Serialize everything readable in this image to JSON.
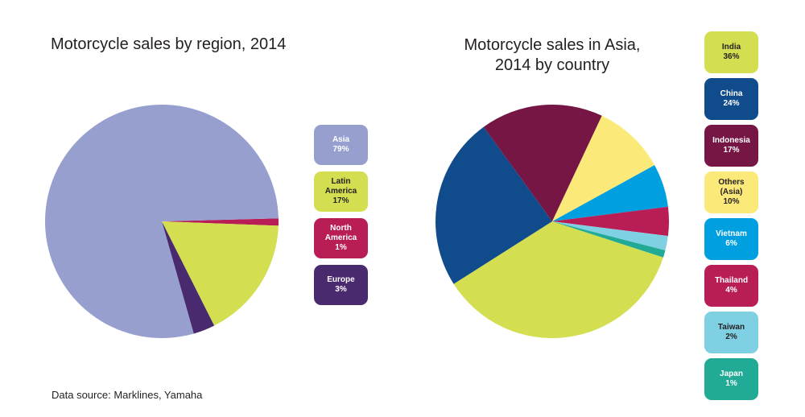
{
  "source": "Data source: Marklines, Yamaha",
  "chart_data": [
    {
      "type": "pie",
      "title": "Motorcycle sales by region, 2014",
      "unit": "%",
      "slices": [
        {
          "label": "Asia",
          "value": 79,
          "color": "#979fcf",
          "text_color": "#ffffff"
        },
        {
          "label": "Latin America",
          "value": 17,
          "color": "#d3df50",
          "text_color": "#231f20"
        },
        {
          "label": "North America",
          "value": 1,
          "color": "#b81d55",
          "text_color": "#ffffff"
        },
        {
          "label": "Europe",
          "value": 3,
          "color": "#4a2a6e",
          "text_color": "#ffffff"
        }
      ],
      "legend": "right"
    },
    {
      "type": "pie",
      "title": "Motorcycle sales in Asia, 2014 by country",
      "unit": "%",
      "slices": [
        {
          "label": "India",
          "value": 36,
          "color": "#d3df50",
          "text_color": "#231f20"
        },
        {
          "label": "China",
          "value": 24,
          "color": "#104b8c",
          "text_color": "#ffffff"
        },
        {
          "label": "Indonesia",
          "value": 17,
          "color": "#761645",
          "text_color": "#ffffff"
        },
        {
          "label": "Others (Asia)",
          "value": 10,
          "color": "#fbe97a",
          "text_color": "#231f20"
        },
        {
          "label": "Vietnam",
          "value": 6,
          "color": "#00a0e0",
          "text_color": "#ffffff"
        },
        {
          "label": "Thailand",
          "value": 4,
          "color": "#b81d55",
          "text_color": "#ffffff"
        },
        {
          "label": "Taiwan",
          "value": 2,
          "color": "#7fd0e2",
          "text_color": "#231f20"
        },
        {
          "label": "Japan",
          "value": 1,
          "color": "#21ab96",
          "text_color": "#ffffff"
        }
      ],
      "legend": "right"
    }
  ]
}
